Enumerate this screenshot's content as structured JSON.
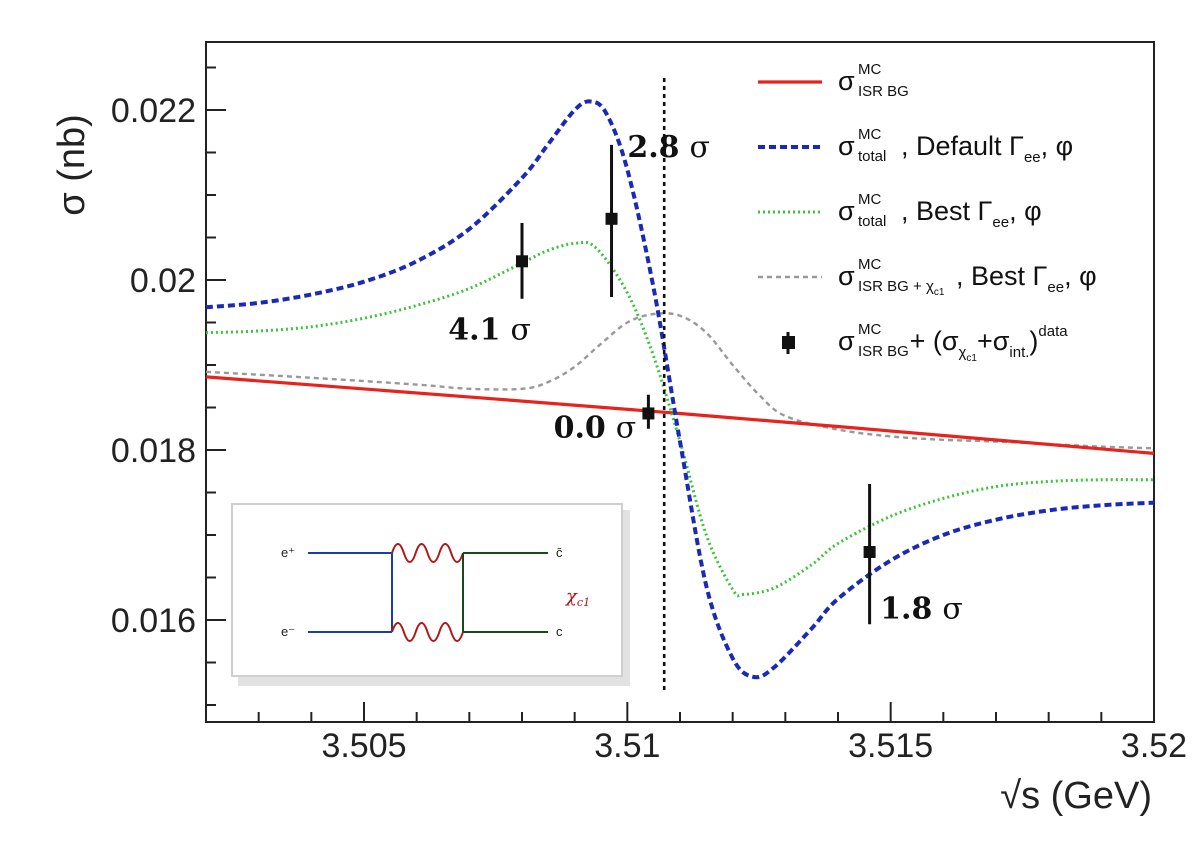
{
  "chart_data": {
    "type": "line",
    "title": "",
    "xlabel": "√s (GeV)",
    "ylabel": "σ (nb)",
    "xlim": [
      3.502,
      3.52
    ],
    "ylim": [
      0.0148,
      0.0228
    ],
    "x_ticks": [
      3.505,
      3.51,
      3.515,
      3.52
    ],
    "x_tick_labels": [
      "3.505",
      "3.51",
      "3.515",
      "3.52"
    ],
    "y_ticks": [
      0.016,
      0.018,
      0.02,
      0.022
    ],
    "y_tick_labels": [
      "0.016",
      "0.018",
      "0.02",
      "0.022"
    ],
    "grid": false,
    "legend_position": "top-right",
    "series": [
      {
        "legend": {
          "sym": "σ",
          "sup": "MC",
          "sub": "ISR BG",
          "text": ""
        },
        "style": "solid",
        "color": "#e8221c",
        "points": [
          [
            3.502,
            0.01886
          ],
          [
            3.511,
            0.01843
          ],
          [
            3.52,
            0.01796
          ]
        ]
      },
      {
        "legend": {
          "sym": "σ",
          "sup": "MC",
          "sub": "total",
          "text": ", Default Γ",
          "text_sub": "ee",
          "text_end": ", φ"
        },
        "style": "dashed",
        "color": "#1a2ab4",
        "points": [
          [
            3.502,
            0.01968
          ],
          [
            3.503,
            0.01973
          ],
          [
            3.504,
            0.01983
          ],
          [
            3.505,
            0.01998
          ],
          [
            3.506,
            0.02022
          ],
          [
            3.507,
            0.0206
          ],
          [
            3.508,
            0.0212
          ],
          [
            3.5085,
            0.0216
          ],
          [
            3.509,
            0.022
          ],
          [
            3.5093,
            0.0221
          ],
          [
            3.5096,
            0.02196
          ],
          [
            3.51,
            0.0213
          ],
          [
            3.5105,
            0.0199
          ],
          [
            3.511,
            0.0181
          ],
          [
            3.5115,
            0.0164
          ],
          [
            3.512,
            0.01555
          ],
          [
            3.5124,
            0.01533
          ],
          [
            3.5128,
            0.01545
          ],
          [
            3.5135,
            0.0159
          ],
          [
            3.514,
            0.01625
          ],
          [
            3.515,
            0.0167
          ],
          [
            3.516,
            0.017
          ],
          [
            3.517,
            0.01718
          ],
          [
            3.518,
            0.01729
          ],
          [
            3.519,
            0.01735
          ],
          [
            3.52,
            0.01738
          ]
        ]
      },
      {
        "legend": {
          "sym": "σ",
          "sup": "MC",
          "sub": "total",
          "text": ", Best Γ",
          "text_sub": "ee",
          "text_end": ", φ"
        },
        "style": "dotted",
        "color": "#3bc43b",
        "points": [
          [
            3.502,
            0.01938
          ],
          [
            3.503,
            0.0194
          ],
          [
            3.504,
            0.01945
          ],
          [
            3.505,
            0.01955
          ],
          [
            3.506,
            0.0197
          ],
          [
            3.507,
            0.0199
          ],
          [
            3.508,
            0.0202
          ],
          [
            3.5085,
            0.02035
          ],
          [
            3.509,
            0.02043
          ],
          [
            3.5094,
            0.02038
          ],
          [
            3.51,
            0.01985
          ],
          [
            3.5105,
            0.0191
          ],
          [
            3.511,
            0.0181
          ],
          [
            3.5115,
            0.017
          ],
          [
            3.512,
            0.01636
          ],
          [
            3.5122,
            0.0163
          ],
          [
            3.5128,
            0.01638
          ],
          [
            3.5135,
            0.01665
          ],
          [
            3.514,
            0.0169
          ],
          [
            3.515,
            0.01722
          ],
          [
            3.516,
            0.01743
          ],
          [
            3.517,
            0.01757
          ],
          [
            3.518,
            0.01763
          ],
          [
            3.519,
            0.01765
          ],
          [
            3.52,
            0.01765
          ]
        ]
      },
      {
        "legend": {
          "sym": "σ",
          "sup": "MC",
          "sub": "ISR BG + χ",
          "subsub": "c1",
          "text": ", Best Γ",
          "text_sub": "ee",
          "text_end": ", φ"
        },
        "style": "dashed-thin",
        "color": "#999999",
        "points": [
          [
            3.502,
            0.01892
          ],
          [
            3.504,
            0.01885
          ],
          [
            3.506,
            0.01877
          ],
          [
            3.507,
            0.01872
          ],
          [
            3.508,
            0.01872
          ],
          [
            3.5085,
            0.0188
          ],
          [
            3.509,
            0.01898
          ],
          [
            3.5095,
            0.01925
          ],
          [
            3.51,
            0.0195
          ],
          [
            3.5105,
            0.0196
          ],
          [
            3.511,
            0.01958
          ],
          [
            3.5115,
            0.01938
          ],
          [
            3.512,
            0.019
          ],
          [
            3.5125,
            0.01865
          ],
          [
            3.513,
            0.0184
          ],
          [
            3.514,
            0.01824
          ],
          [
            3.515,
            0.01816
          ],
          [
            3.516,
            0.01812
          ],
          [
            3.517,
            0.0181
          ],
          [
            3.518,
            0.01807
          ],
          [
            3.519,
            0.01804
          ],
          [
            3.52,
            0.01802
          ]
        ]
      }
    ],
    "data_points": {
      "legend": {
        "sym": "σ",
        "sup": "MC",
        "sub": "ISR BG",
        "text": " + (σ",
        "text_sub": "χ",
        "text_subsub": "c1",
        "text_mid": "+σ",
        "text_sub2": "int.",
        "text_end": ")",
        "text_sup": "data"
      },
      "color": "#111111",
      "points": [
        {
          "x": 3.508,
          "y": 0.02022,
          "yerr_low": 0.00044,
          "yerr_high": 0.00045
        },
        {
          "x": 3.5097,
          "y": 0.02072,
          "yerr_low": 0.00092,
          "yerr_high": 0.00087
        },
        {
          "x": 3.5104,
          "y": 0.01843,
          "yerr_low": 0.00018,
          "yerr_high": 0.00022
        },
        {
          "x": 3.5146,
          "y": 0.0168,
          "yerr_low": 0.00085,
          "yerr_high": 0.0008
        }
      ]
    },
    "vertical_line": {
      "x": 3.5107,
      "style": "dotted",
      "color": "#111111"
    },
    "annotations": [
      {
        "num": "2.8",
        "sym": "σ",
        "x": 3.51,
        "y": 0.02145
      },
      {
        "num": "4.1",
        "sym": "σ",
        "x": 3.5066,
        "y": 0.0193
      },
      {
        "num": "0.0",
        "sym": "σ",
        "x": 3.5086,
        "y": 0.01815
      },
      {
        "num": "1.8",
        "sym": "σ",
        "x": 3.5148,
        "y": 0.01602
      }
    ],
    "inset": {
      "labels": {
        "e_plus": "e⁺",
        "e_minus": "e⁻",
        "c_bar": "c̄",
        "c": "c",
        "chi": "χ",
        "chi_sub": "c1"
      }
    }
  }
}
